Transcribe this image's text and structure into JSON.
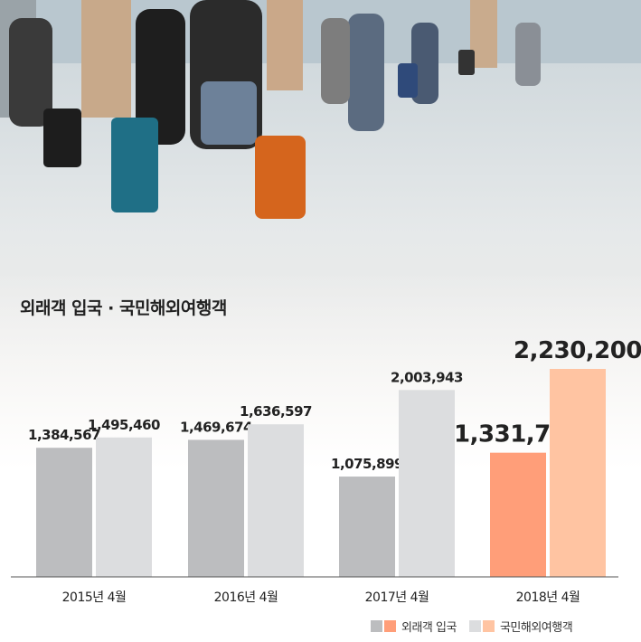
{
  "chart_data": {
    "type": "bar",
    "title": "외래객 입국 · 국민해외여행객",
    "categories": [
      "2015년 4월",
      "2016년 4월",
      "2017년 4월",
      "2018년 4월"
    ],
    "series": [
      {
        "name": "외래객 입국",
        "values": [
          1384567,
          1469674,
          1075899,
          1331709
        ],
        "labels": [
          "1,384,567",
          "1,469,674",
          "1,075,899",
          "1,331,709"
        ]
      },
      {
        "name": "국민해외여행객",
        "values": [
          1495460,
          1636597,
          2003943,
          2230200
        ],
        "labels": [
          "1,495,460",
          "1,636,597",
          "2,003,943",
          "2,230,200"
        ]
      }
    ],
    "ylim": [
      0,
      2400000
    ],
    "grid": false,
    "legend_position": "bottom-right",
    "highlight_category": "2018년 4월"
  },
  "colors": {
    "series1": "#bcbdbf",
    "series2": "#dcdddf",
    "series1_highlight": "#ff9e79",
    "series2_highlight": "#ffc4a2",
    "text": "#222222"
  }
}
